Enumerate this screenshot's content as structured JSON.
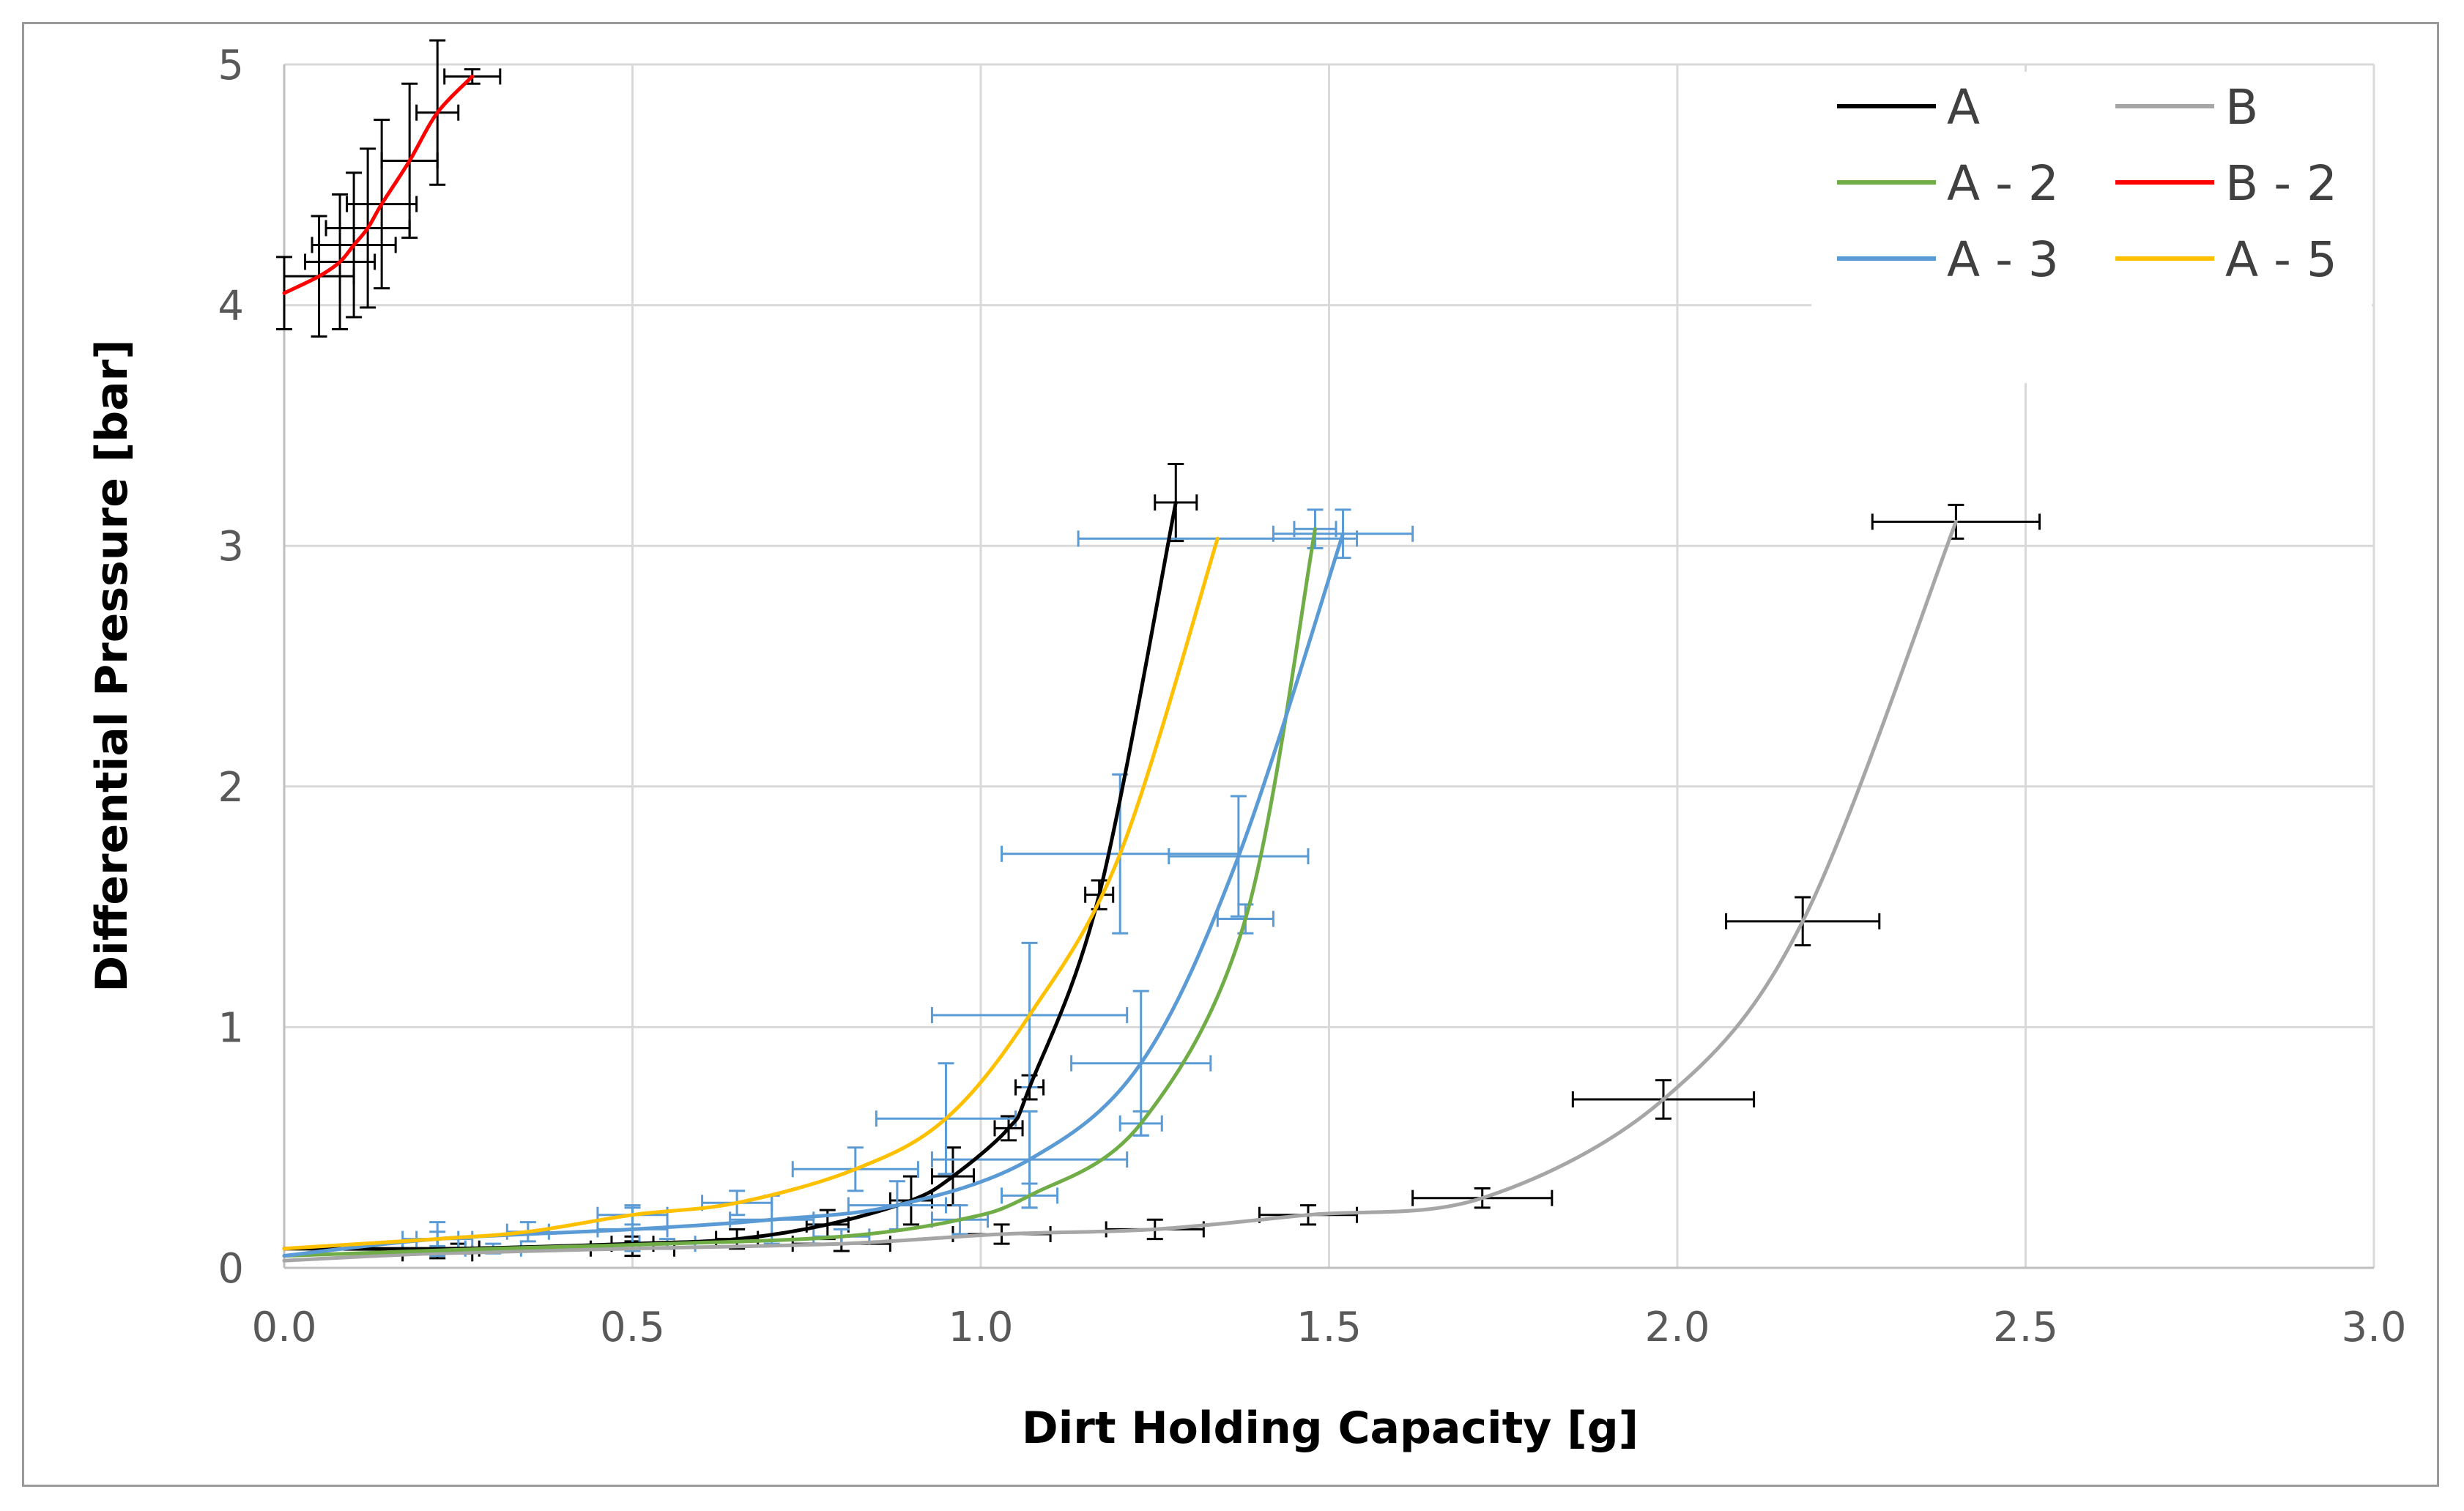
{
  "chart_data": {
    "type": "line",
    "title": "",
    "xlabel": "Dirt Holding Capacity [g]",
    "ylabel": "Differential Pressure [bar]",
    "xlim": [
      0,
      3
    ],
    "ylim": [
      0,
      5
    ],
    "xticks": [
      0,
      0.5,
      1,
      1.5,
      2,
      2.5,
      3
    ],
    "xtick_labels": [
      "0.0",
      "0.5",
      "1.0",
      "1.5",
      "2.0",
      "2.5",
      "3.0"
    ],
    "yticks": [
      0,
      1,
      2,
      3,
      4,
      5
    ],
    "ytick_labels": [
      "0",
      "1",
      "2",
      "3",
      "4",
      "5"
    ],
    "grid": true,
    "legend_position": "top-right",
    "legend_order": [
      "A",
      "B",
      "A - 2",
      "B - 2",
      "A - 3",
      "A - 5"
    ],
    "series": [
      {
        "name": "A",
        "color": "#000000",
        "x": [
          0.0,
          0.25,
          0.5,
          0.65,
          0.78,
          0.9,
          0.96,
          1.04,
          1.07,
          1.17,
          1.28
        ],
        "y": [
          0.08,
          0.08,
          0.1,
          0.12,
          0.18,
          0.28,
          0.38,
          0.58,
          0.75,
          1.55,
          3.18
        ],
        "xerr": [
          0,
          0.03,
          0.03,
          0.03,
          0.03,
          0.03,
          0.03,
          0.02,
          0.02,
          0.02,
          0.03
        ],
        "yerr": [
          0,
          0.02,
          0.03,
          0.04,
          0.06,
          0.1,
          0.12,
          0.05,
          0.05,
          0.06,
          0.16
        ]
      },
      {
        "name": "B",
        "color": "#a6a6a6",
        "x": [
          0.0,
          0.22,
          0.5,
          0.8,
          1.03,
          1.25,
          1.47,
          1.72,
          1.98,
          2.18,
          2.4
        ],
        "y": [
          0.03,
          0.06,
          0.08,
          0.1,
          0.14,
          0.16,
          0.22,
          0.29,
          0.7,
          1.44,
          3.1
        ],
        "xerr": [
          0,
          0.05,
          0.06,
          0.07,
          0.07,
          0.07,
          0.07,
          0.1,
          0.13,
          0.11,
          0.12
        ],
        "yerr": [
          0,
          0.02,
          0.03,
          0.03,
          0.04,
          0.04,
          0.04,
          0.04,
          0.08,
          0.1,
          0.07
        ]
      },
      {
        "name": "A - 2",
        "color": "#70ad47",
        "x": [
          0.0,
          0.3,
          0.55,
          0.8,
          0.97,
          1.07,
          1.23,
          1.38,
          1.48
        ],
        "y": [
          0.05,
          0.08,
          0.1,
          0.13,
          0.2,
          0.3,
          0.6,
          1.45,
          3.07
        ],
        "xerr": [
          0,
          0.04,
          0.04,
          0.04,
          0.04,
          0.04,
          0.03,
          0.04,
          0.03
        ],
        "yerr": [
          0,
          0.02,
          0.02,
          0.03,
          0.06,
          0.05,
          0.05,
          0.06,
          0.08
        ]
      },
      {
        "name": "A - 3",
        "color": "#5b9bd5",
        "x": [
          0.0,
          0.22,
          0.5,
          0.7,
          0.88,
          1.07,
          1.23,
          1.37,
          1.52
        ],
        "y": [
          0.05,
          0.12,
          0.16,
          0.2,
          0.26,
          0.45,
          0.85,
          1.71,
          3.05
        ],
        "xerr": [
          0,
          0.05,
          0.05,
          0.06,
          0.07,
          0.14,
          0.1,
          0.1,
          0.1
        ],
        "yerr": [
          0,
          0.07,
          0.09,
          0.1,
          0.1,
          0.2,
          0.3,
          0.25,
          0.1
        ]
      },
      {
        "name": "A - 5",
        "color": "#ffc000",
        "x": [
          0.0,
          0.22,
          0.35,
          0.5,
          0.65,
          0.82,
          0.95,
          1.07,
          1.2,
          1.34
        ],
        "y": [
          0.08,
          0.12,
          0.15,
          0.22,
          0.27,
          0.41,
          0.62,
          1.05,
          1.72,
          3.03
        ],
        "xerr": [
          0,
          0.03,
          0.03,
          0.05,
          0.05,
          0.09,
          0.1,
          0.14,
          0.17,
          0.2
        ],
        "yerr": [
          0,
          0.03,
          0.04,
          0.04,
          0.05,
          0.09,
          0.23,
          0.3,
          0.33,
          0
        ]
      },
      {
        "name": "B - 2",
        "color": "#ff0000",
        "x": [
          0.0,
          0.05,
          0.08,
          0.1,
          0.12,
          0.14,
          0.18,
          0.22,
          0.27
        ],
        "y": [
          4.05,
          4.12,
          4.18,
          4.25,
          4.32,
          4.42,
          4.6,
          4.8,
          4.95
        ],
        "xerr": [
          0,
          0.05,
          0.05,
          0.06,
          0.06,
          0.05,
          0.04,
          0.03,
          0.04
        ],
        "yerr": [
          0.15,
          0.25,
          0.28,
          0.3,
          0.33,
          0.35,
          0.32,
          0.3,
          0.03
        ]
      }
    ]
  }
}
